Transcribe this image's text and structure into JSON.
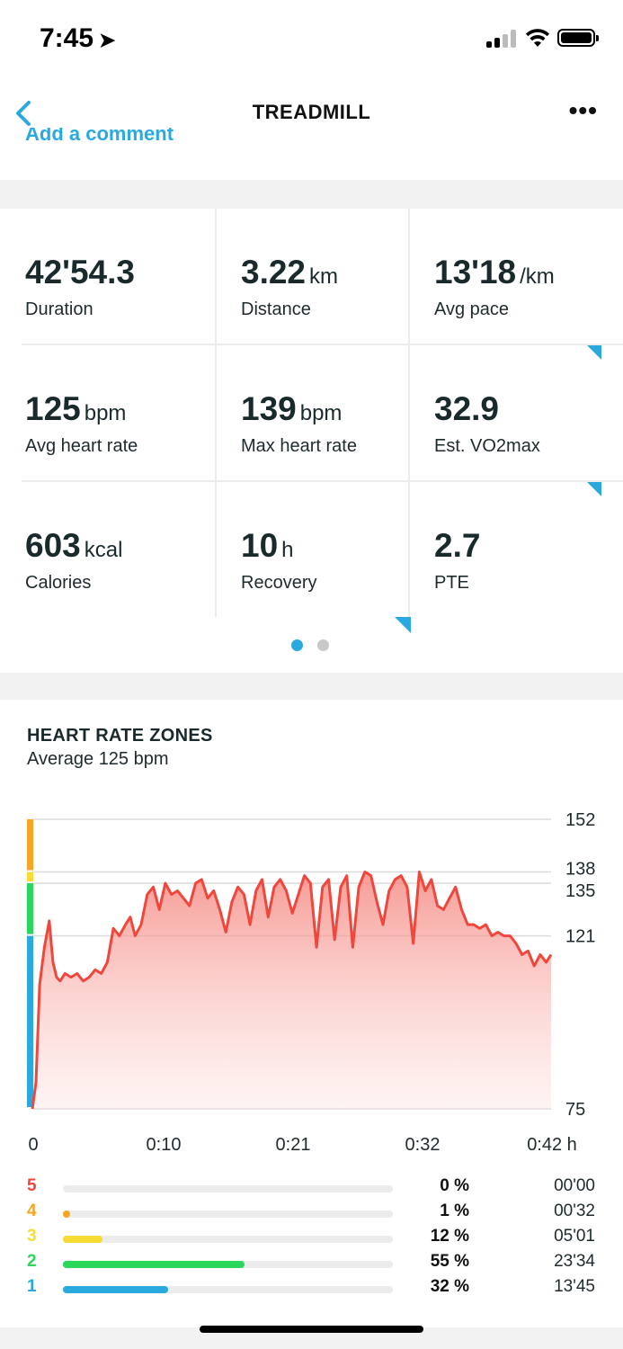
{
  "status": {
    "time": "7:45"
  },
  "nav": {
    "title": "TREADMILL",
    "comment_link": "Add a comment"
  },
  "stats": [
    {
      "value": "42'54.3",
      "unit": "",
      "label": "Duration",
      "has_info": false
    },
    {
      "value": "3.22",
      "unit": "km",
      "label": "Distance",
      "has_info": false
    },
    {
      "value": "13'18",
      "unit": "/km",
      "label": "Avg pace",
      "has_info": true
    },
    {
      "value": "125",
      "unit": "bpm",
      "label": "Avg heart rate",
      "has_info": false
    },
    {
      "value": "139",
      "unit": "bpm",
      "label": "Max heart rate",
      "has_info": false
    },
    {
      "value": "32.9",
      "unit": "",
      "label": "Est. VO2max",
      "has_info": true
    },
    {
      "value": "603",
      "unit": "kcal",
      "label": "Calories",
      "has_info": false
    },
    {
      "value": "10",
      "unit": "h",
      "label": "Recovery",
      "has_info": true
    },
    {
      "value": "2.7",
      "unit": "",
      "label": "PTE",
      "has_info": false
    }
  ],
  "pager": {
    "pages": 2,
    "active": 0
  },
  "heart_rate": {
    "title": "HEART RATE ZONES",
    "subtitle": "Average 125 bpm",
    "zones": [
      {
        "zone": "5",
        "percent": "0 %",
        "time": "00'00",
        "fraction": 0.0,
        "color": "#f0473d"
      },
      {
        "zone": "4",
        "percent": "1 %",
        "time": "00'32",
        "fraction": 0.01,
        "color": "#f5a623"
      },
      {
        "zone": "3",
        "percent": "12 %",
        "time": "05'01",
        "fraction": 0.12,
        "color": "#f7dc33"
      },
      {
        "zone": "2",
        "percent": "55 %",
        "time": "23'34",
        "fraction": 0.55,
        "color": "#2bd75a"
      },
      {
        "zone": "1",
        "percent": "32 %",
        "time": "13'45",
        "fraction": 0.32,
        "color": "#2aa9df"
      }
    ]
  },
  "chart_data": {
    "type": "area",
    "title": "HEART RATE ZONES",
    "subtitle": "Average 125 bpm",
    "xlabel": "",
    "ylabel": "",
    "x_unit": "h",
    "x_ticks": [
      "0",
      "0:10",
      "0:21",
      "0:32",
      "0:42 h"
    ],
    "y_ticks": [
      "152",
      "138",
      "135",
      "121",
      "75"
    ],
    "y_tick_values": [
      152,
      138,
      135,
      121,
      75
    ],
    "ylim": [
      75,
      152
    ],
    "xlim": [
      0,
      42.9
    ],
    "zone_bands": [
      {
        "zone": "1",
        "from": 75,
        "to": 121,
        "color": "#2aa9df"
      },
      {
        "zone": "2",
        "from": 121,
        "to": 135,
        "color": "#2bd75a"
      },
      {
        "zone": "3",
        "from": 135,
        "to": 138,
        "color": "#f7dc33"
      },
      {
        "zone": "4",
        "from": 138,
        "to": 152,
        "color": "#f5a623"
      }
    ],
    "series": [
      {
        "color": "#f0473d",
        "x": [
          0,
          0.3,
          0.6,
          1.0,
          1.4,
          1.7,
          2.0,
          2.3,
          2.7,
          3.2,
          3.7,
          4.2,
          4.7,
          5.2,
          5.7,
          6.2,
          6.7,
          7.2,
          7.7,
          8.1,
          8.5,
          9.0,
          9.5,
          10.0,
          10.5,
          11.0,
          11.5,
          12.0,
          12.5,
          13.0,
          13.5,
          14.0,
          14.5,
          15.0,
          15.5,
          16.0,
          16.5,
          17.0,
          17.5,
          18.0,
          18.5,
          19.0,
          19.5,
          20.0,
          20.5,
          21.0,
          21.5,
          22.0,
          22.5,
          23.0,
          23.5,
          24.0,
          24.5,
          25.0,
          25.5,
          26.0,
          26.5,
          27.0,
          27.5,
          28.0,
          28.5,
          29.0,
          29.5,
          30.0,
          30.5,
          31.0,
          31.5,
          32.0,
          32.5,
          33.0,
          33.5,
          34.0,
          34.5,
          35.0,
          35.5,
          36.0,
          36.5,
          37.0,
          37.5,
          38.0,
          38.5,
          39.0,
          39.5,
          40.0,
          40.5,
          41.0,
          41.5,
          42.0,
          42.5,
          42.9
        ],
        "y": [
          75,
          82,
          108,
          118,
          125,
          114,
          110,
          109,
          111,
          110,
          111,
          109,
          110,
          112,
          111,
          114,
          123,
          121,
          124,
          126,
          121,
          124,
          132,
          134,
          128,
          135,
          132,
          133,
          131,
          129,
          135,
          136,
          131,
          133,
          128,
          122,
          130,
          134,
          132,
          124,
          133,
          136,
          126,
          134,
          136,
          133,
          127,
          132,
          137,
          135,
          118,
          134,
          136,
          120,
          134,
          137,
          118,
          134,
          138,
          137,
          130,
          124,
          133,
          136,
          137,
          134,
          119,
          138,
          133,
          136,
          129,
          128,
          131,
          134,
          128,
          124,
          124,
          123,
          124,
          121,
          122,
          121,
          121,
          119,
          116,
          117,
          113,
          116,
          114,
          116
        ]
      }
    ]
  }
}
